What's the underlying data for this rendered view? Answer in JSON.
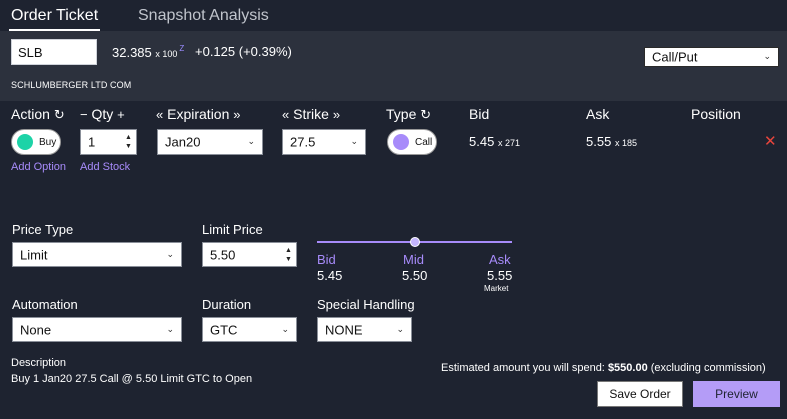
{
  "tabs": [
    {
      "label": "Order Ticket"
    },
    {
      "label": "Snapshot Analysis"
    }
  ],
  "quote": {
    "symbol": "SLB",
    "last_price": "32.385",
    "last_size": "x 100",
    "exchange_mark": "Z",
    "net_change": "+0.125 (+0.39%)",
    "company": "SCHLUMBERGER LTD COM",
    "callput_select": "Call/Put"
  },
  "leg_headers": {
    "action": "Action",
    "qty": "Qty",
    "expiration": "Expiration",
    "strike": "Strike",
    "type": "Type",
    "bid": "Bid",
    "ask": "Ask",
    "position": "Position"
  },
  "icons": {
    "action_refresh": "refresh-icon",
    "qty_minus": "minus-icon",
    "qty_plus": "plus-icon",
    "exp_prev": "double-chevron-left-icon",
    "exp_next": "double-chevron-right-icon",
    "strike_prev": "double-chevron-left-icon",
    "strike_next": "double-chevron-right-icon",
    "type_refresh": "refresh-icon",
    "remove": "close-icon",
    "select_chevron": "chevron-down-icon"
  },
  "leg": {
    "action": "Buy",
    "action_color": "#1dd3a7",
    "qty": "1",
    "expiration": "Jan20",
    "strike": "27.5",
    "type": "Call",
    "type_color": "#a78bfa",
    "bid": "5.45",
    "bid_size": "x 271",
    "ask": "5.55",
    "ask_size": "x 185",
    "add_option": "Add Option",
    "add_stock": "Add Stock"
  },
  "order": {
    "price_type_label": "Price Type",
    "price_type": "Limit",
    "limit_price_label": "Limit Price",
    "limit_price": "5.50",
    "automation_label": "Automation",
    "automation": "None",
    "duration_label": "Duration",
    "duration": "GTC",
    "special_handling_label": "Special Handling",
    "special_handling": "NONE"
  },
  "price_slider": {
    "bid_label": "Bid",
    "bid_value": "5.45",
    "mid_label": "Mid",
    "mid_value": "5.50",
    "ask_label": "Ask",
    "ask_value": "5.55",
    "market_label": "Market",
    "position_fraction": 0.5
  },
  "summary": {
    "description_label": "Description",
    "description": "Buy 1 Jan20 27.5 Call @ 5.50 Limit GTC to Open",
    "estimate_prefix": "Estimated amount you will spend:",
    "estimate_amount": "$550.00",
    "estimate_suffix": "(excluding commission)"
  },
  "buttons": {
    "save_order": "Save Order",
    "preview": "Preview"
  },
  "colors": {
    "background": "#1e2330",
    "band": "#2c313d",
    "accent": "#a78bfa",
    "remove": "#e8453c"
  }
}
